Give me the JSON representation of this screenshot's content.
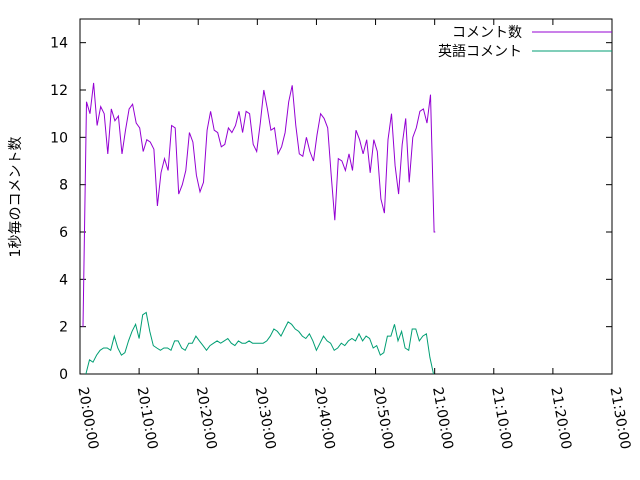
{
  "chart_data": {
    "type": "line",
    "title": "",
    "xlabel": "",
    "ylabel": "1秒毎のコメント数",
    "x_range": [
      "20:00:00",
      "21:30:00"
    ],
    "x_ticks": [
      "20:00:00",
      "20:10:00",
      "20:20:00",
      "20:30:00",
      "20:40:00",
      "20:50:00",
      "21:00:00",
      "21:10:00",
      "21:20:00",
      "21:30:00"
    ],
    "ylim": [
      0,
      15
    ],
    "y_ticks": [
      0,
      2,
      4,
      6,
      8,
      10,
      12,
      14
    ],
    "grid": false,
    "legend": "top-right",
    "x_step_minutes": 0.6,
    "series": [
      {
        "name": "コメント数",
        "color": "#9400d3",
        "x_start": "20:00:30",
        "values": [
          2.0,
          11.5,
          11.0,
          12.3,
          10.5,
          11.3,
          11.0,
          9.3,
          11.2,
          10.7,
          10.9,
          9.3,
          10.3,
          11.2,
          11.4,
          10.6,
          10.4,
          9.4,
          9.9,
          9.8,
          9.5,
          7.1,
          8.5,
          9.1,
          8.6,
          10.5,
          10.4,
          7.6,
          8.0,
          8.6,
          10.2,
          9.8,
          8.4,
          7.7,
          8.1,
          10.3,
          11.1,
          10.3,
          10.2,
          9.6,
          9.7,
          10.4,
          10.2,
          10.5,
          11.1,
          10.2,
          11.1,
          11.0,
          9.7,
          9.4,
          10.6,
          12.0,
          11.2,
          10.3,
          10.4,
          9.3,
          9.6,
          10.2,
          11.5,
          12.2,
          10.5,
          9.3,
          9.2,
          10.0,
          9.4,
          9.0,
          10.1,
          11.0,
          10.8,
          10.4,
          8.4,
          6.5,
          9.1,
          9.0,
          8.6,
          9.3,
          8.6,
          10.3,
          9.9,
          9.3,
          9.9,
          8.5,
          9.9,
          9.4,
          7.4,
          6.8,
          9.9,
          11.0,
          8.8,
          7.6,
          9.7,
          10.8,
          8.1,
          10.0,
          10.4,
          11.1,
          11.2,
          10.6,
          11.8,
          6.0
        ],
        "end_value": 6.0
      },
      {
        "name": "英語コメント",
        "color": "#009e73",
        "x_start": "20:01:00",
        "values": [
          0.0,
          0.6,
          0.5,
          0.8,
          1.0,
          1.1,
          1.1,
          1.0,
          1.6,
          1.1,
          0.8,
          0.9,
          1.4,
          1.8,
          2.1,
          1.5,
          2.5,
          2.6,
          1.8,
          1.2,
          1.1,
          1.0,
          1.1,
          1.1,
          1.0,
          1.4,
          1.4,
          1.1,
          1.0,
          1.3,
          1.3,
          1.6,
          1.4,
          1.2,
          1.0,
          1.2,
          1.3,
          1.4,
          1.3,
          1.4,
          1.5,
          1.3,
          1.2,
          1.4,
          1.3,
          1.3,
          1.4,
          1.3,
          1.3,
          1.3,
          1.3,
          1.4,
          1.6,
          1.9,
          1.8,
          1.6,
          1.9,
          2.2,
          2.1,
          1.9,
          1.8,
          1.6,
          1.5,
          1.7,
          1.4,
          1.0,
          1.3,
          1.6,
          1.4,
          1.3,
          1.0,
          1.1,
          1.3,
          1.2,
          1.4,
          1.5,
          1.4,
          1.7,
          1.4,
          1.6,
          1.5,
          1.1,
          1.2,
          0.8,
          0.9,
          1.6,
          1.6,
          2.1,
          1.4,
          1.8,
          1.1,
          1.0,
          1.9,
          1.9,
          1.4,
          1.6,
          1.7,
          0.7,
          0.0
        ]
      }
    ]
  }
}
